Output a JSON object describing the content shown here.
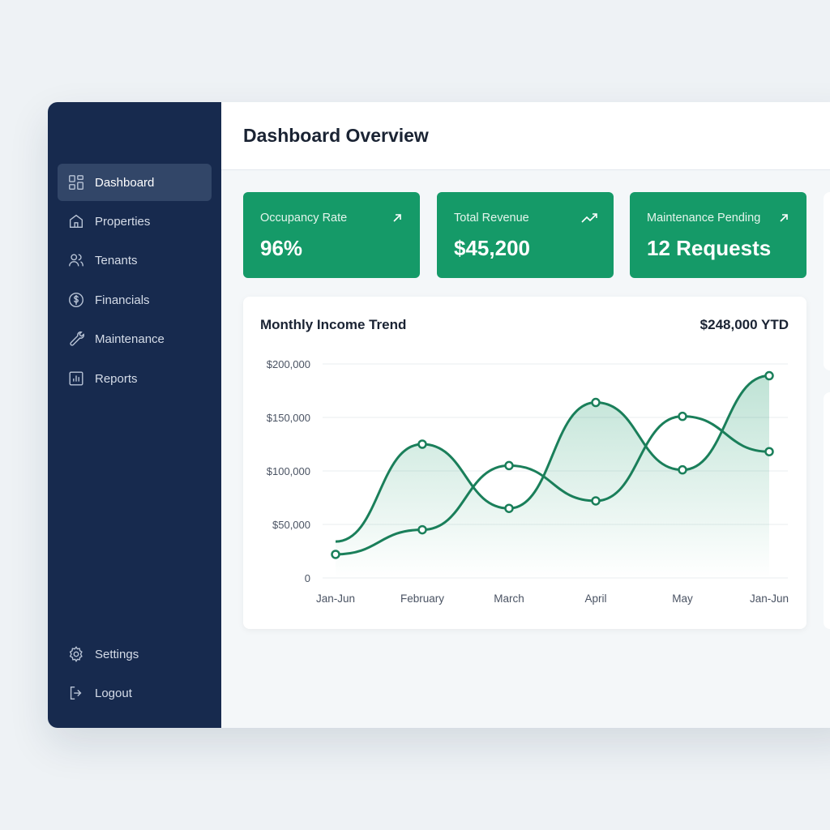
{
  "sidebar": {
    "items": [
      {
        "label": "Dashboard",
        "icon": "grid-icon",
        "active": true
      },
      {
        "label": "Properties",
        "icon": "home-icon"
      },
      {
        "label": "Tenants",
        "icon": "users-icon"
      },
      {
        "label": "Financials",
        "icon": "dollar-circle-icon"
      },
      {
        "label": "Maintenance",
        "icon": "wrench-icon"
      },
      {
        "label": "Reports",
        "icon": "bar-chart-icon"
      }
    ],
    "bottom": [
      {
        "label": "Settings",
        "icon": "gear-icon"
      },
      {
        "label": "Logout",
        "icon": "logout-icon"
      }
    ]
  },
  "header": {
    "title": "Dashboard Overview"
  },
  "stats": [
    {
      "label": "Occupancy Rate",
      "value": "96%",
      "icon": "arrow-up-right-icon"
    },
    {
      "label": "Total Revenue",
      "value": "$45,200",
      "icon": "trending-up-icon"
    },
    {
      "label": "Maintenance Pending",
      "value": "12 Requests",
      "icon": "arrow-up-right-icon"
    }
  ],
  "colors": {
    "sidebar": "#172a4e",
    "accent": "#159a68",
    "line": "#1a7f5a"
  },
  "chart_data": {
    "type": "line",
    "title": "Monthly Income Trend",
    "summary": "$248,000 YTD",
    "categories": [
      "Jan-Jun",
      "February",
      "March",
      "April",
      "May",
      "Jan-Jun"
    ],
    "yticks": [
      "0",
      "$50,000",
      "$100,000",
      "$150,000",
      "$200,000"
    ],
    "ylim": [
      0,
      200000
    ],
    "grid": true,
    "series": [
      {
        "values": [
          34000,
          125000,
          65000,
          164000,
          101000,
          189000
        ],
        "filled": true,
        "first_marker": false
      },
      {
        "values": [
          22000,
          45000,
          105000,
          72000,
          151000,
          118000
        ],
        "filled": false
      }
    ]
  }
}
